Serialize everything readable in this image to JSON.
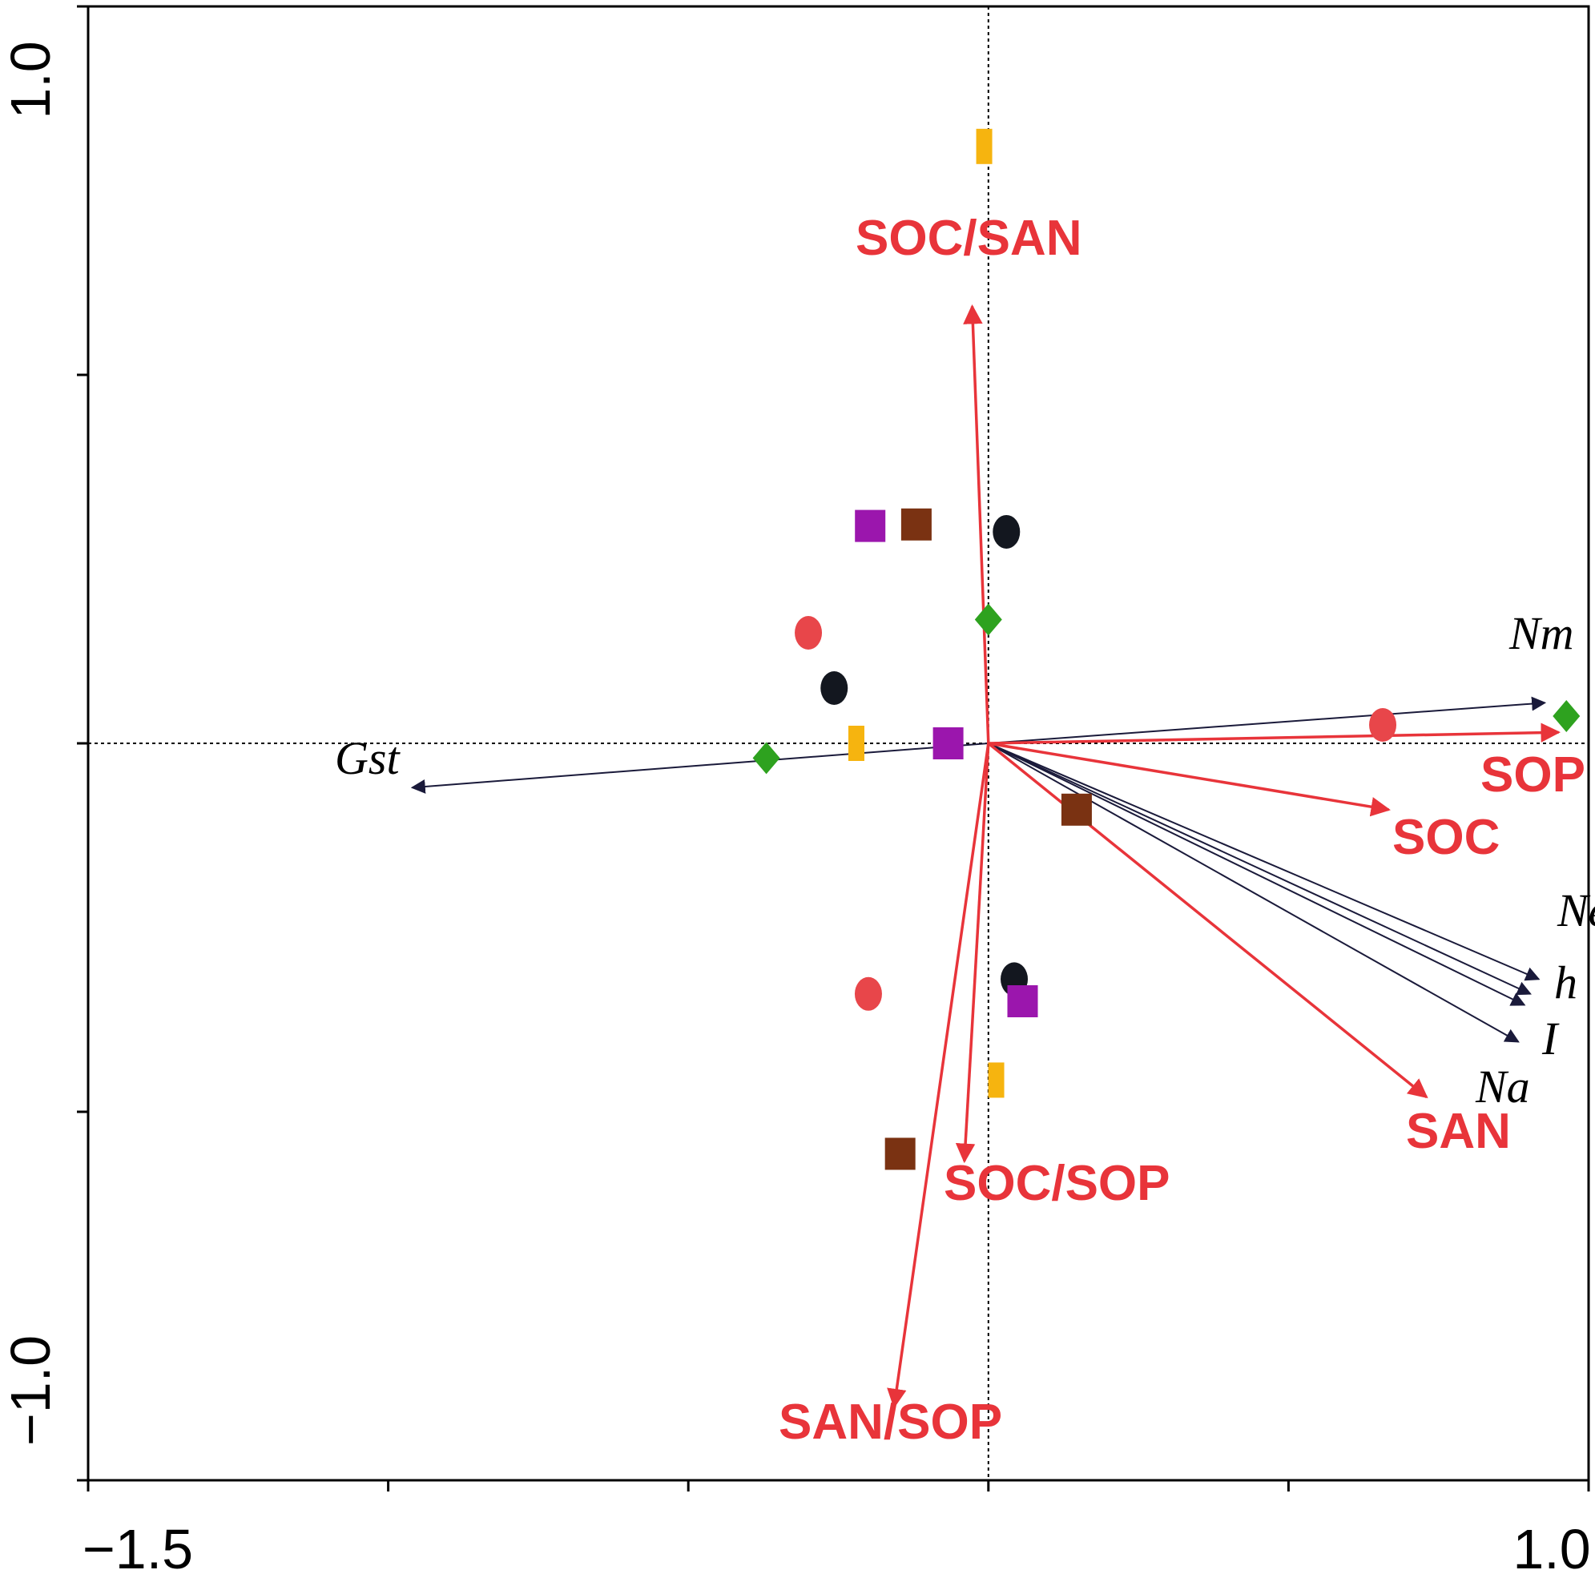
{
  "chart_data": {
    "type": "scatter",
    "title": "",
    "xlabel": "",
    "ylabel": "",
    "xlim": [
      -1.5,
      1.0
    ],
    "ylim": [
      -1.0,
      1.0
    ],
    "x_tick_labels": [
      "−1.5",
      "1.0"
    ],
    "y_tick_labels": [
      "1.0",
      "−1.0"
    ],
    "x_minor_ticks": [
      -1.5,
      -1.0,
      -0.5,
      0.0,
      0.5,
      1.0
    ],
    "y_minor_ticks": [
      1.0,
      0.5,
      0.0,
      -0.5,
      -1.0
    ],
    "grid": false,
    "reference_lines": {
      "x": 0,
      "y": 0,
      "style": "dotted"
    },
    "env_vectors": {
      "color": "#e8343a",
      "items": [
        {
          "label": "SOC/SAN",
          "x": -0.027,
          "y": 0.593
        },
        {
          "label": "SOC/SOP",
          "x": -0.04,
          "y": -0.567
        },
        {
          "label": "SAN/SOP",
          "x": -0.157,
          "y": -0.9
        },
        {
          "label": "SOP",
          "x": 0.95,
          "y": 0.015
        },
        {
          "label": "SOC",
          "x": 0.667,
          "y": -0.09
        },
        {
          "label": "SAN",
          "x": 0.73,
          "y": -0.48
        }
      ]
    },
    "genetic_vectors": {
      "color": "#1a1a3a",
      "items": [
        {
          "label": "Nm",
          "x": 0.927,
          "y": 0.055
        },
        {
          "label": "Gst",
          "x": -0.96,
          "y": -0.06
        },
        {
          "label": "Ne",
          "x": 0.917,
          "y": -0.32
        },
        {
          "label": "h",
          "x": 0.903,
          "y": -0.34
        },
        {
          "label": "I",
          "x": 0.883,
          "y": -0.405
        },
        {
          "label": "Na",
          "x": 0.893,
          "y": -0.355
        }
      ]
    },
    "series": [
      {
        "marker": "circle",
        "color": "#e8464a",
        "points": [
          {
            "x": -0.3,
            "y": 0.15
          },
          {
            "x": -0.2,
            "y": -0.34
          },
          {
            "x": 0.657,
            "y": 0.025
          }
        ]
      },
      {
        "marker": "circle",
        "color": "#13171f",
        "points": [
          {
            "x": 0.03,
            "y": 0.287
          },
          {
            "x": -0.257,
            "y": 0.075
          },
          {
            "x": 0.043,
            "y": -0.32
          }
        ]
      },
      {
        "marker": "square",
        "color": "#9b16ad",
        "points": [
          {
            "x": -0.197,
            "y": 0.295
          },
          {
            "x": -0.067,
            "y": 0.0
          },
          {
            "x": 0.057,
            "y": -0.35
          }
        ]
      },
      {
        "marker": "square",
        "color": "#7a3212",
        "points": [
          {
            "x": -0.12,
            "y": 0.297
          },
          {
            "x": 0.147,
            "y": -0.09
          },
          {
            "x": -0.147,
            "y": -0.557
          }
        ]
      },
      {
        "marker": "bar",
        "color": "#f6b40f",
        "points": [
          {
            "x": -0.007,
            "y": 0.81
          },
          {
            "x": -0.22,
            "y": 0.0
          },
          {
            "x": 0.013,
            "y": -0.457
          }
        ]
      },
      {
        "marker": "diamond",
        "color": "#2ea21f",
        "points": [
          {
            "x": 0.0,
            "y": 0.168
          },
          {
            "x": -0.37,
            "y": -0.02
          },
          {
            "x": 0.963,
            "y": 0.037
          }
        ]
      }
    ]
  }
}
